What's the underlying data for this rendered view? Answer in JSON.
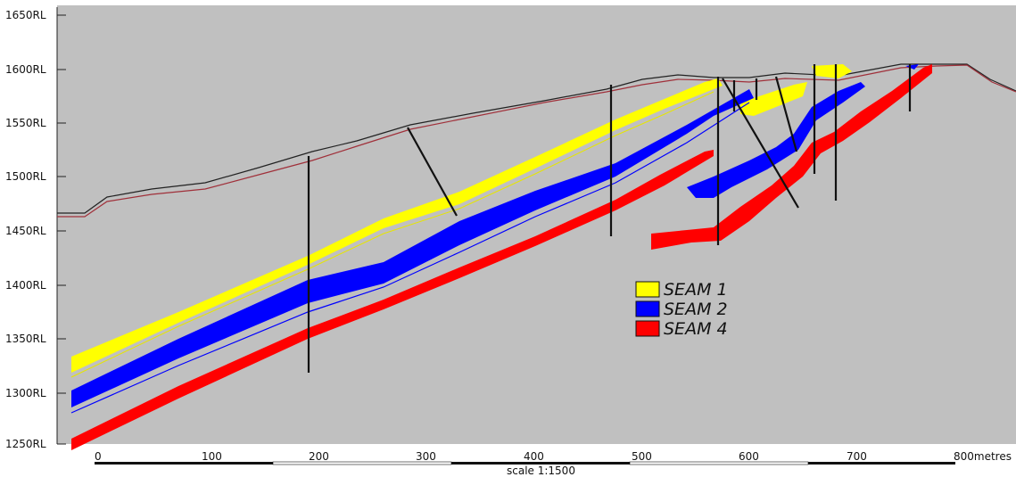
{
  "section": {
    "background": "#c0c0c0",
    "elevation_labels": [
      "1650RL",
      "1600RL",
      "1550RL",
      "1500RL",
      "1450RL",
      "1400RL",
      "1350RL",
      "1300RL",
      "1250RL"
    ],
    "distance_labels": [
      "0",
      "100",
      "200",
      "300",
      "400",
      "500",
      "600",
      "700",
      "800metres"
    ],
    "scale_text": "scale 1:1500"
  },
  "legend": {
    "items": [
      {
        "name": "seam-1",
        "label": "SEAM 1",
        "color": "#ffff00"
      },
      {
        "name": "seam-2",
        "label": "SEAM 2",
        "color": "#0000ff"
      },
      {
        "name": "seam-4",
        "label": "SEAM 4",
        "color": "#ff0000"
      }
    ]
  },
  "colors": {
    "surface_black": "#222222",
    "surface_red": "#a0303a",
    "drillhole": "#111111"
  }
}
